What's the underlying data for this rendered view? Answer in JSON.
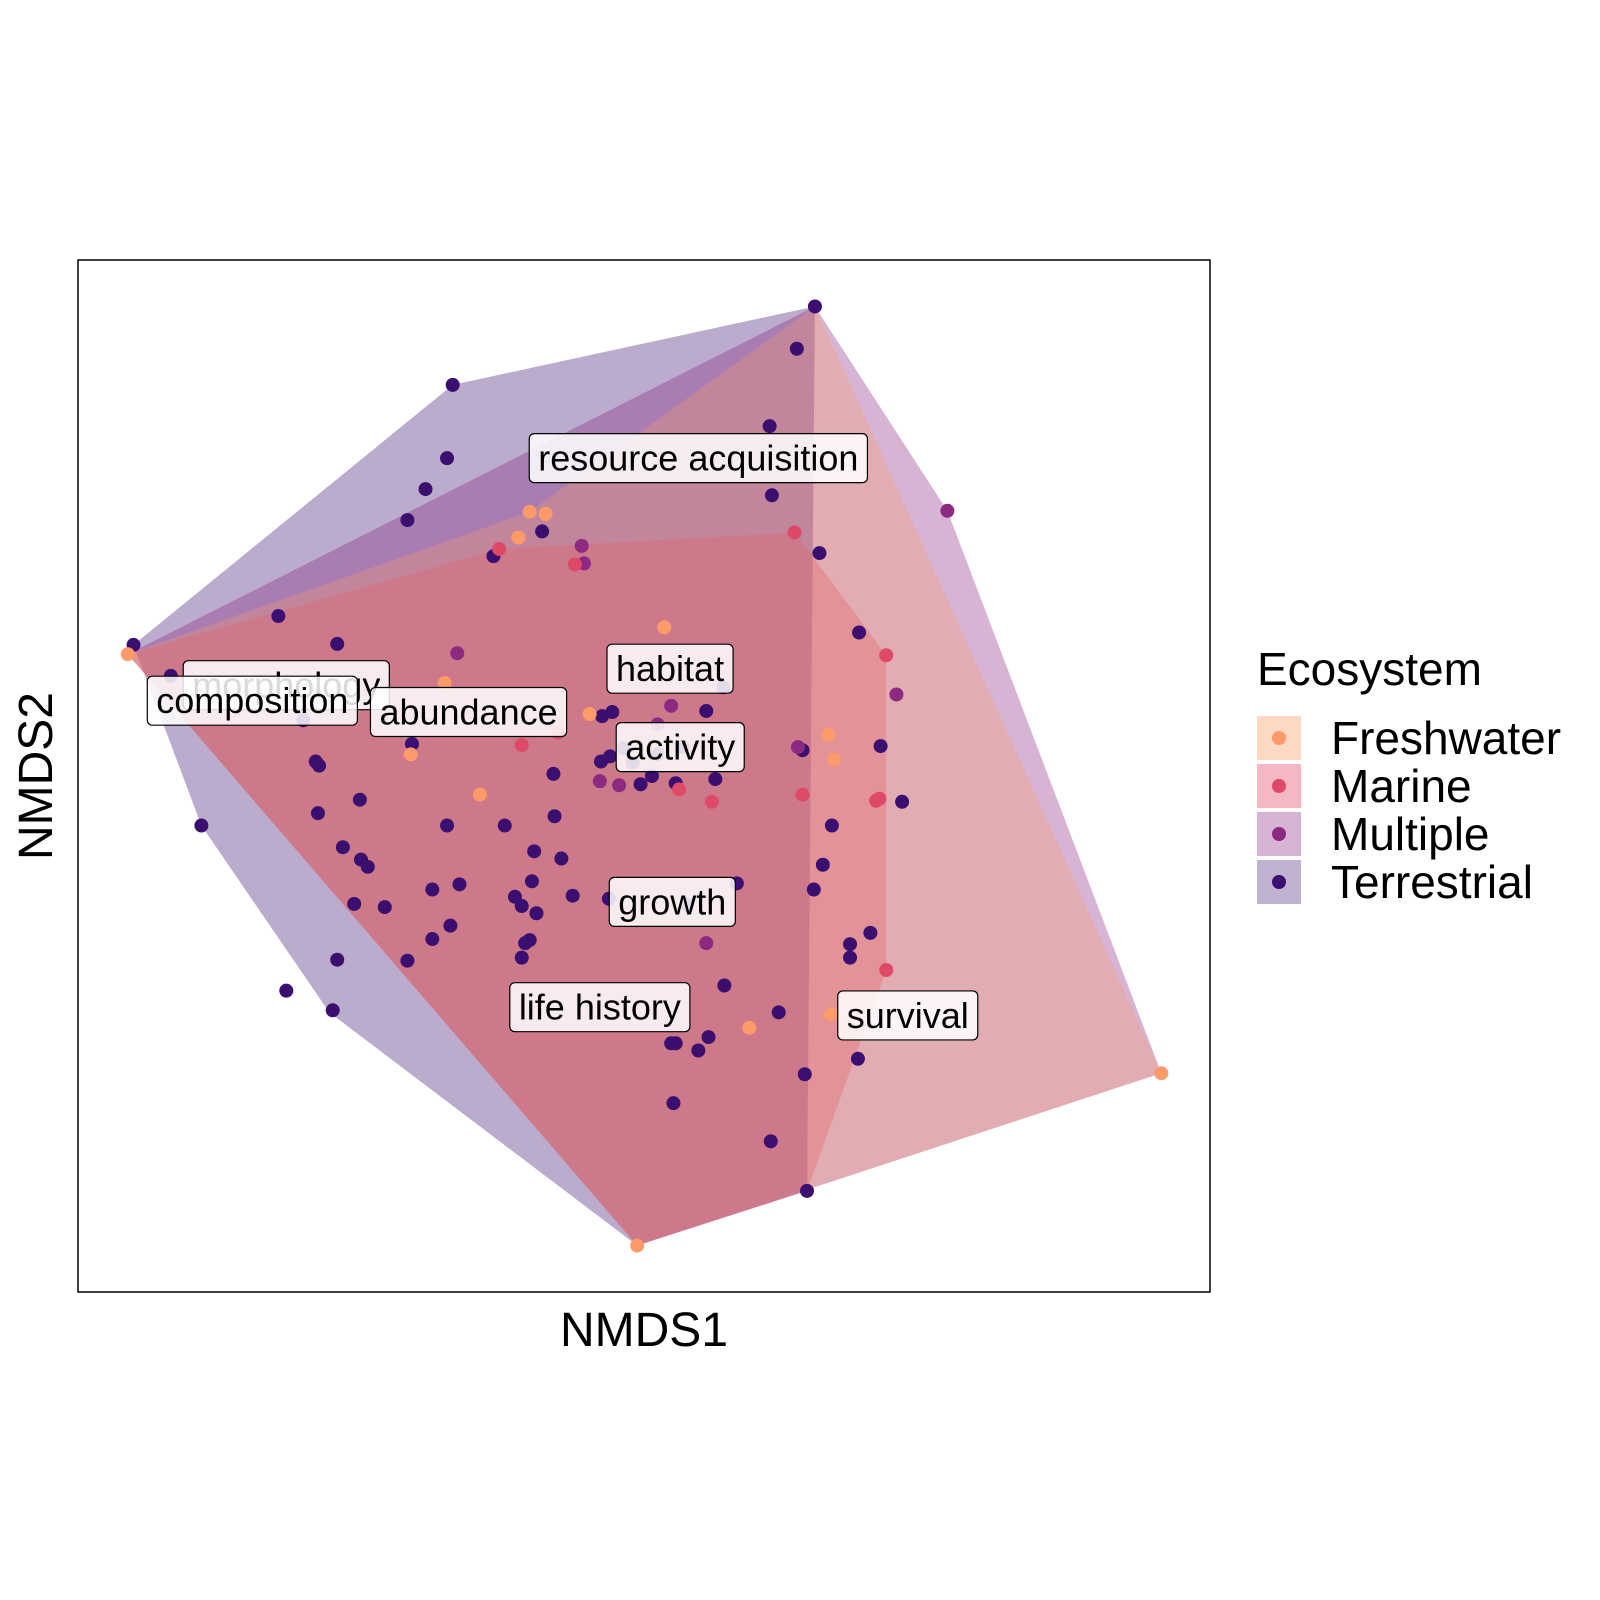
{
  "chart_data": {
    "type": "scatter",
    "xlabel": "NMDS1",
    "ylabel": "NMDS2",
    "xlim": [
      0,
      1
    ],
    "ylim": [
      0,
      1
    ],
    "grid": false,
    "legend": {
      "title": "Ecosystem",
      "placement": "right",
      "entries": [
        "Freshwater",
        "Marine",
        "Multiple",
        "Terrestrial"
      ]
    },
    "colors": {
      "Freshwater": "#fd9a6a",
      "Marine": "#de4968",
      "Multiple": "#8c2981",
      "Terrestrial": "#3b0f70"
    },
    "hull_fills": {
      "Freshwater": "#fdd8c4",
      "Marine": "#f3b8c4",
      "Multiple": "#d8b4d4",
      "Terrestrial": "#c2b2d2"
    },
    "series": [
      {
        "name": "Terrestrial",
        "points": [
          [
            0.049,
            0.627
          ],
          [
            0.331,
            0.879
          ],
          [
            0.651,
            0.955
          ],
          [
            0.635,
            0.914
          ],
          [
            0.611,
            0.839
          ],
          [
            0.326,
            0.808
          ],
          [
            0.307,
            0.778
          ],
          [
            0.291,
            0.748
          ],
          [
            0.613,
            0.772
          ],
          [
            0.367,
            0.713
          ],
          [
            0.41,
            0.737
          ],
          [
            0.655,
            0.716
          ],
          [
            0.177,
            0.655
          ],
          [
            0.229,
            0.628
          ],
          [
            0.082,
            0.597
          ],
          [
            0.295,
            0.531
          ],
          [
            0.199,
            0.554
          ],
          [
            0.21,
            0.514
          ],
          [
            0.213,
            0.51
          ],
          [
            0.42,
            0.502
          ],
          [
            0.421,
            0.461
          ],
          [
            0.49,
            0.513
          ],
          [
            0.463,
            0.558
          ],
          [
            0.512,
            0.521
          ],
          [
            0.47,
            0.519
          ],
          [
            0.507,
            0.5
          ],
          [
            0.497,
            0.492
          ],
          [
            0.555,
            0.563
          ],
          [
            0.57,
            0.586
          ],
          [
            0.462,
            0.514
          ],
          [
            0.528,
            0.493
          ],
          [
            0.534,
            0.528
          ],
          [
            0.563,
            0.497
          ],
          [
            0.64,
            0.525
          ],
          [
            0.728,
            0.475
          ],
          [
            0.666,
            0.452
          ],
          [
            0.69,
            0.639
          ],
          [
            0.709,
            0.529
          ],
          [
            0.658,
            0.414
          ],
          [
            0.65,
            0.39
          ],
          [
            0.682,
            0.337
          ],
          [
            0.7,
            0.348
          ],
          [
            0.109,
            0.452
          ],
          [
            0.326,
            0.452
          ],
          [
            0.377,
            0.452
          ],
          [
            0.403,
            0.427
          ],
          [
            0.405,
            0.367
          ],
          [
            0.395,
            0.338
          ],
          [
            0.337,
            0.395
          ],
          [
            0.313,
            0.39
          ],
          [
            0.313,
            0.342
          ],
          [
            0.437,
            0.384
          ],
          [
            0.427,
            0.42
          ],
          [
            0.401,
            0.398
          ],
          [
            0.392,
            0.374
          ],
          [
            0.399,
            0.341
          ],
          [
            0.386,
            0.383
          ],
          [
            0.392,
            0.324
          ],
          [
            0.329,
            0.355
          ],
          [
            0.271,
            0.373
          ],
          [
            0.229,
            0.322
          ],
          [
            0.244,
            0.376
          ],
          [
            0.291,
            0.321
          ],
          [
            0.469,
            0.381
          ],
          [
            0.582,
            0.396
          ],
          [
            0.571,
            0.297
          ],
          [
            0.557,
            0.247
          ],
          [
            0.538,
            0.375
          ],
          [
            0.619,
            0.271
          ],
          [
            0.682,
            0.324
          ],
          [
            0.689,
            0.226
          ],
          [
            0.642,
            0.211
          ],
          [
            0.548,
            0.234
          ],
          [
            0.524,
            0.241
          ],
          [
            0.528,
            0.241
          ],
          [
            0.526,
            0.183
          ],
          [
            0.612,
            0.146
          ],
          [
            0.644,
            0.098
          ],
          [
            0.225,
            0.273
          ],
          [
            0.184,
            0.292
          ],
          [
            0.256,
            0.412
          ],
          [
            0.25,
            0.419
          ],
          [
            0.234,
            0.431
          ],
          [
            0.249,
            0.477
          ],
          [
            0.212,
            0.464
          ],
          [
            0.472,
            0.562
          ],
          [
            0.482,
            0.527
          ]
        ]
      },
      {
        "name": "Multiple",
        "points": [
          [
            0.768,
            0.757
          ],
          [
            0.445,
            0.723
          ],
          [
            0.447,
            0.706
          ],
          [
            0.335,
            0.619
          ],
          [
            0.723,
            0.579
          ],
          [
            0.461,
            0.495
          ],
          [
            0.478,
            0.491
          ],
          [
            0.636,
            0.528
          ],
          [
            0.555,
            0.338
          ],
          [
            0.512,
            0.55
          ],
          [
            0.524,
            0.568
          ]
        ]
      },
      {
        "name": "Marine",
        "points": [
          [
            0.372,
            0.72
          ],
          [
            0.439,
            0.705
          ],
          [
            0.633,
            0.736
          ],
          [
            0.714,
            0.617
          ],
          [
            0.392,
            0.53
          ],
          [
            0.531,
            0.487
          ],
          [
            0.56,
            0.475
          ],
          [
            0.64,
            0.482
          ],
          [
            0.705,
            0.476
          ],
          [
            0.708,
            0.478
          ],
          [
            0.714,
            0.312
          ],
          [
            0.424,
            0.542
          ]
        ]
      },
      {
        "name": "Freshwater",
        "points": [
          [
            0.044,
            0.618
          ],
          [
            0.399,
            0.756
          ],
          [
            0.413,
            0.754
          ],
          [
            0.389,
            0.731
          ],
          [
            0.518,
            0.644
          ],
          [
            0.324,
            0.59
          ],
          [
            0.452,
            0.56
          ],
          [
            0.355,
            0.482
          ],
          [
            0.294,
            0.521
          ],
          [
            0.663,
            0.54
          ],
          [
            0.668,
            0.516
          ],
          [
            0.665,
            0.269
          ],
          [
            0.593,
            0.256
          ],
          [
            0.494,
            0.045
          ],
          [
            0.957,
            0.212
          ]
        ]
      }
    ],
    "annotations": [
      {
        "text": "resource acquisition",
        "x": 0.548,
        "y": 0.808
      },
      {
        "text": "habitat",
        "x": 0.523,
        "y": 0.604
      },
      {
        "text": "morphology",
        "x": 0.184,
        "y": 0.588
      },
      {
        "text": "composition",
        "x": 0.154,
        "y": 0.573
      },
      {
        "text": "abundance",
        "x": 0.345,
        "y": 0.562
      },
      {
        "text": "activity",
        "x": 0.532,
        "y": 0.528
      },
      {
        "text": "growth",
        "x": 0.525,
        "y": 0.378
      },
      {
        "text": "life history",
        "x": 0.461,
        "y": 0.276
      },
      {
        "text": "survival",
        "x": 0.733,
        "y": 0.268
      }
    ],
    "hulls": {
      "Terrestrial": [
        [
          0.049,
          0.627
        ],
        [
          0.109,
          0.452
        ],
        [
          0.222,
          0.271
        ],
        [
          0.494,
          0.045
        ],
        [
          0.644,
          0.098
        ],
        [
          0.651,
          0.955
        ],
        [
          0.331,
          0.879
        ]
      ],
      "Multiple": [
        [
          0.044,
          0.618
        ],
        [
          0.494,
          0.045
        ],
        [
          0.957,
          0.212
        ],
        [
          0.768,
          0.757
        ],
        [
          0.651,
          0.955
        ]
      ],
      "Marine": [
        [
          0.044,
          0.618
        ],
        [
          0.494,
          0.045
        ],
        [
          0.644,
          0.098
        ],
        [
          0.714,
          0.312
        ],
        [
          0.714,
          0.617
        ],
        [
          0.633,
          0.736
        ],
        [
          0.372,
          0.72
        ]
      ],
      "Freshwater": [
        [
          0.044,
          0.618
        ],
        [
          0.494,
          0.045
        ],
        [
          0.957,
          0.212
        ],
        [
          0.651,
          0.955
        ],
        [
          0.399,
          0.756
        ]
      ]
    }
  }
}
